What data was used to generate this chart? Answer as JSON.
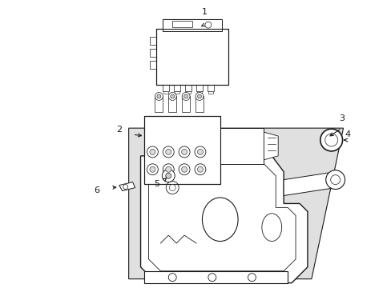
{
  "background_color": "#ffffff",
  "line_color": "#1a1a1a",
  "hatch_color": "#888888",
  "fill_panel": "#e8e8e8",
  "fill_white": "#ffffff",
  "fill_light": "#f0f0f0",
  "figsize": [
    4.89,
    3.6
  ],
  "dpi": 100
}
